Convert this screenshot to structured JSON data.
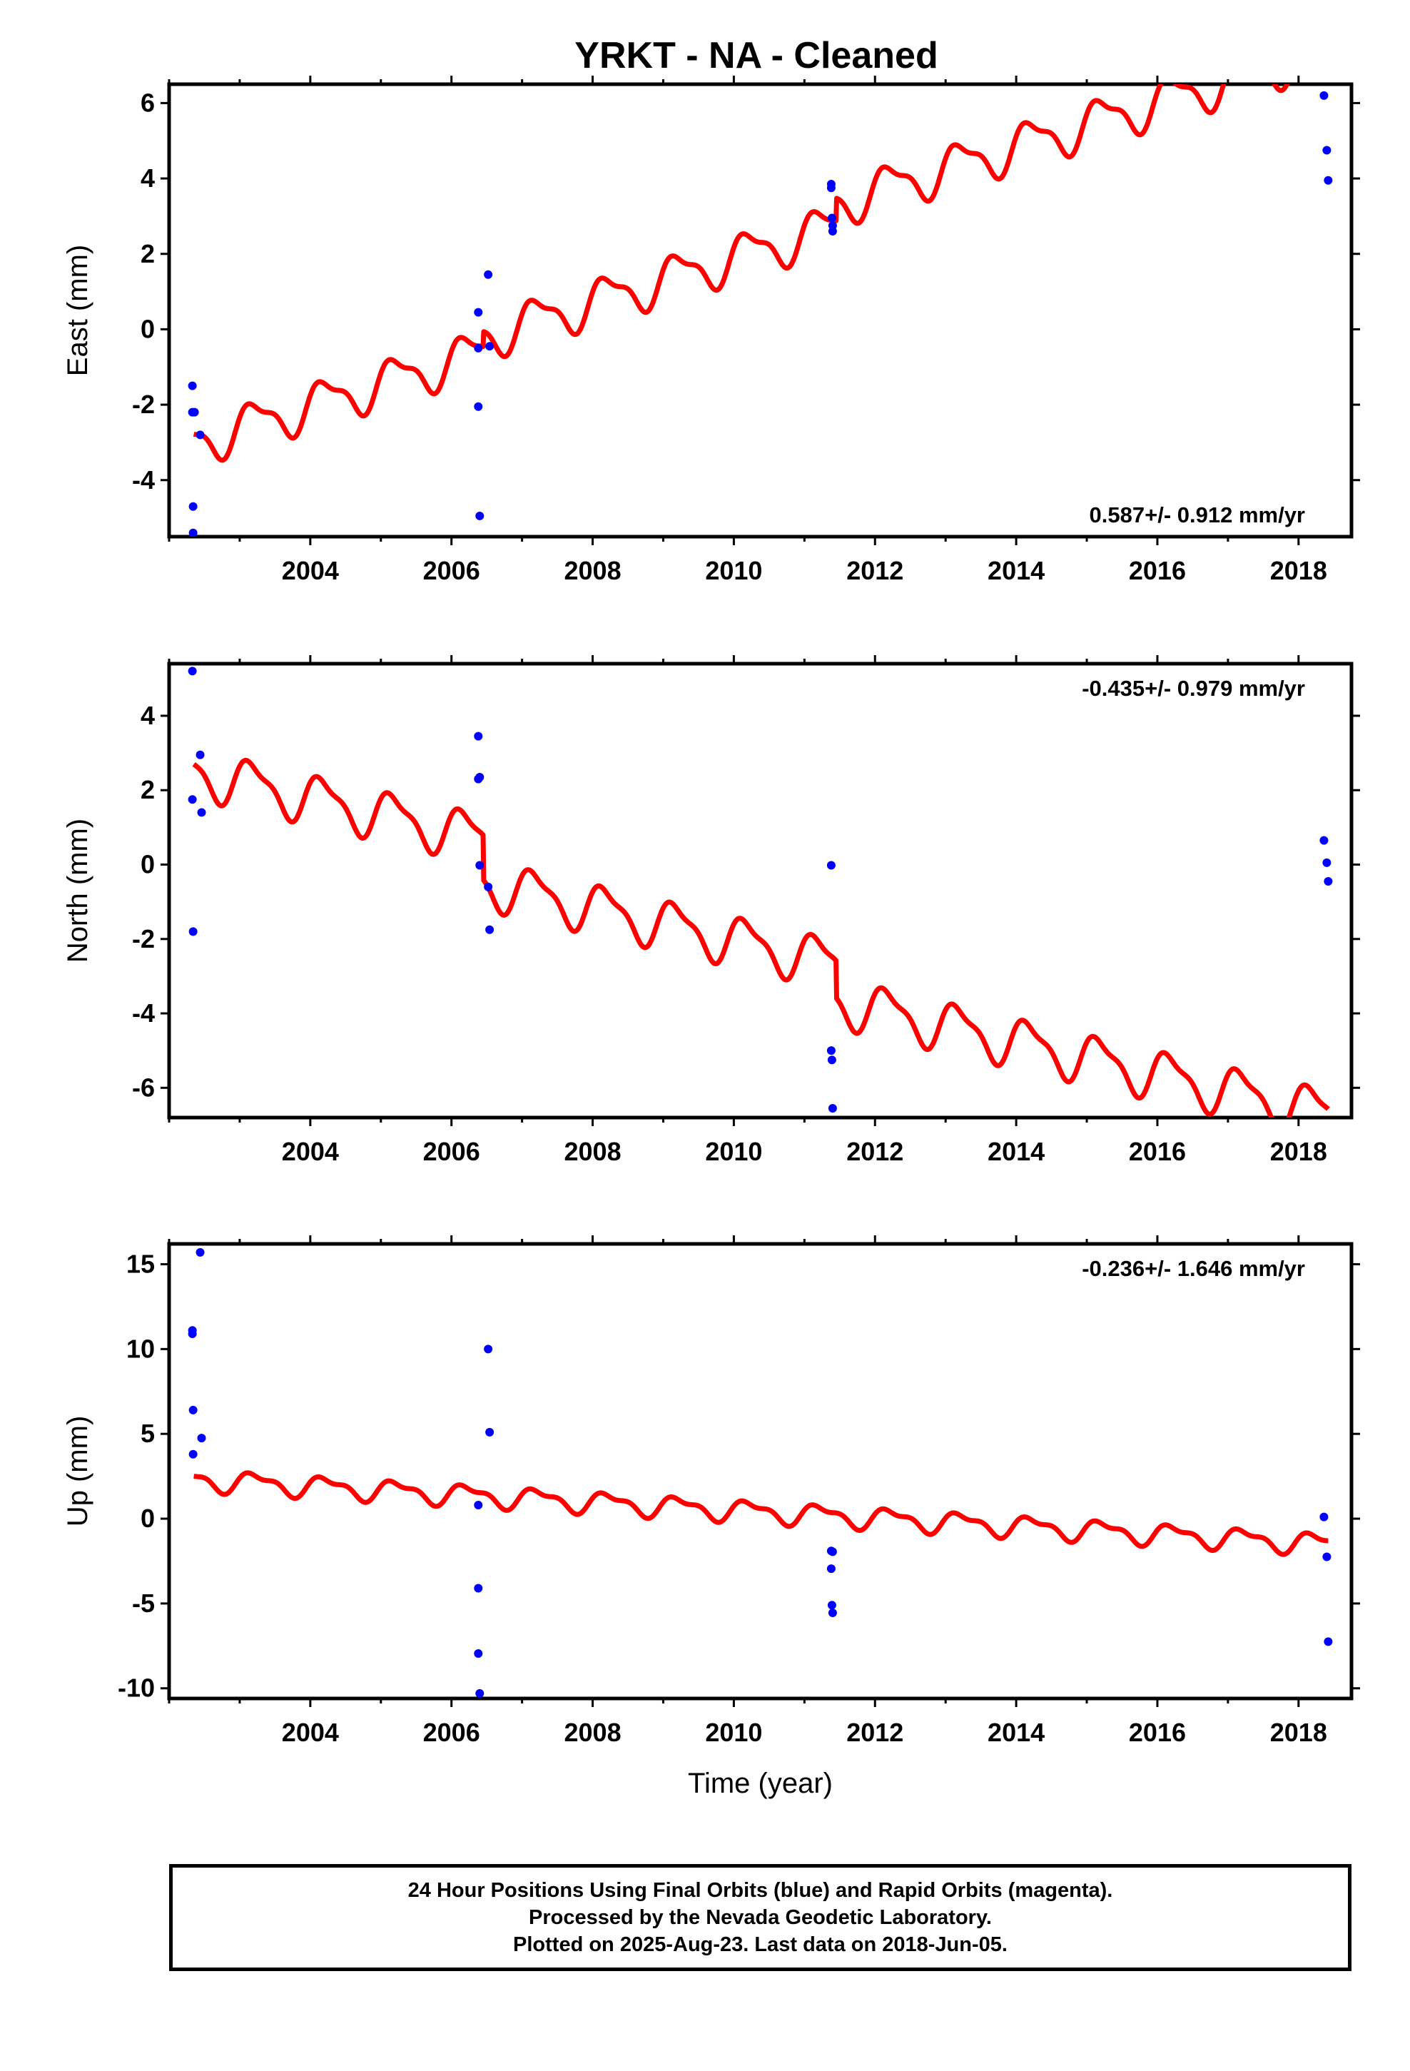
{
  "title": "YRKT  - NA - Cleaned",
  "footer": {
    "line1": "24 Hour Positions Using Final Orbits (blue) and Rapid Orbits (magenta).",
    "line2": "Processed by the Nevada Geodetic Laboratory.",
    "line3": "Plotted on 2025-Aug-23. Last data on 2018-Jun-05."
  },
  "colors": {
    "final_orbits": "#0000ff",
    "model": "#ff0000",
    "axis": "#000000"
  },
  "chart_data": [
    {
      "type": "scatter",
      "ylabel": "East (mm)",
      "xlabel": "",
      "rate": "0.587+/- 0.912 mm/yr",
      "rate_position": "bottom-right",
      "xlim": [
        2002.0,
        2018.75
      ],
      "ylim": [
        -5.5,
        6.5
      ],
      "xticks": [
        2004,
        2006,
        2008,
        2010,
        2012,
        2014,
        2016,
        2018
      ],
      "yticks": [
        -4,
        -2,
        0,
        2,
        4,
        6
      ],
      "grid": false,
      "series": [
        {
          "kind": "points",
          "x": [
            2002.33,
            2002.33,
            2002.34,
            2002.34,
            2002.36,
            2002.44,
            2006.38,
            2006.38,
            2006.38,
            2006.4,
            2006.52,
            2006.54,
            2011.38,
            2011.38,
            2011.39,
            2011.4,
            2011.4,
            2018.36,
            2018.4,
            2018.42
          ],
          "y": [
            -1.5,
            -2.2,
            -4.7,
            -5.4,
            -2.2,
            -2.8,
            0.45,
            -0.5,
            -2.05,
            -4.95,
            1.45,
            -0.45,
            3.85,
            3.75,
            2.95,
            2.75,
            2.6,
            6.2,
            4.75,
            3.95
          ]
        },
        {
          "kind": "model",
          "t0": 2002.35,
          "t1": 2018.42,
          "intercept": -3.0,
          "slope": 0.587,
          "annual_amp": 0.55,
          "annual_phase": 0.2,
          "semiannual_amp": 0.2,
          "semiannual_phase": 1.0,
          "offsets": [
            {
              "t": 2006.45,
              "dy": 0.4
            },
            {
              "t": 2011.45,
              "dy": 0.6
            }
          ]
        }
      ]
    },
    {
      "type": "scatter",
      "ylabel": "North (mm)",
      "xlabel": "",
      "rate": "-0.435+/- 0.979 mm/yr",
      "rate_position": "top-right",
      "xlim": [
        2002.0,
        2018.75
      ],
      "ylim": [
        -6.8,
        5.4
      ],
      "xticks": [
        2004,
        2006,
        2008,
        2010,
        2012,
        2014,
        2016,
        2018
      ],
      "yticks": [
        -6,
        -4,
        -2,
        0,
        2,
        4
      ],
      "grid": false,
      "series": [
        {
          "kind": "points",
          "x": [
            2002.33,
            2002.33,
            2002.34,
            2002.44,
            2002.46,
            2006.38,
            2006.38,
            2006.4,
            2006.4,
            2006.52,
            2006.54,
            2011.38,
            2011.38,
            2011.39,
            2011.4,
            2018.36,
            2018.4,
            2018.42
          ],
          "y": [
            5.2,
            1.75,
            -1.8,
            2.95,
            1.4,
            3.45,
            2.3,
            2.35,
            -0.02,
            -0.6,
            -1.75,
            -0.02,
            -5.0,
            -5.25,
            -6.55,
            0.65,
            0.05,
            -0.45
          ]
        },
        {
          "kind": "model",
          "t0": 2002.35,
          "t1": 2018.42,
          "intercept": 2.5,
          "slope": -0.435,
          "annual_amp": 0.6,
          "annual_phase": 0.4,
          "semiannual_amp": 0.2,
          "semiannual_phase": 1.3,
          "offsets": [
            {
              "t": 2006.45,
              "dy": -1.2
            },
            {
              "t": 2011.45,
              "dy": -1.0
            }
          ]
        }
      ]
    },
    {
      "type": "scatter",
      "ylabel": "Up (mm)",
      "xlabel": "Time (year)",
      "rate": "-0.236+/- 1.646 mm/yr",
      "rate_position": "top-right",
      "xlim": [
        2002.0,
        2018.75
      ],
      "ylim": [
        -10.6,
        16.2
      ],
      "xticks": [
        2004,
        2006,
        2008,
        2010,
        2012,
        2014,
        2016,
        2018
      ],
      "yticks": [
        -10,
        -5,
        0,
        5,
        10,
        15
      ],
      "grid": false,
      "series": [
        {
          "kind": "points",
          "x": [
            2002.33,
            2002.33,
            2002.34,
            2002.34,
            2002.44,
            2002.46,
            2006.38,
            2006.38,
            2006.38,
            2006.4,
            2006.52,
            2006.54,
            2011.38,
            2011.38,
            2011.39,
            2011.4,
            2011.4,
            2018.36,
            2018.4,
            2018.42
          ],
          "y": [
            11.1,
            10.9,
            6.4,
            3.8,
            15.7,
            4.75,
            0.8,
            -4.1,
            -7.95,
            -10.3,
            10.0,
            5.1,
            -1.9,
            -2.95,
            -5.1,
            -5.55,
            -1.95,
            0.1,
            -2.25,
            -7.25
          ]
        },
        {
          "kind": "model",
          "t0": 2002.35,
          "t1": 2018.42,
          "intercept": 2.3,
          "slope": -0.236,
          "annual_amp": 0.55,
          "annual_phase": 0.1,
          "semiannual_amp": 0.25,
          "semiannual_phase": 0.9,
          "offsets": []
        }
      ]
    }
  ]
}
